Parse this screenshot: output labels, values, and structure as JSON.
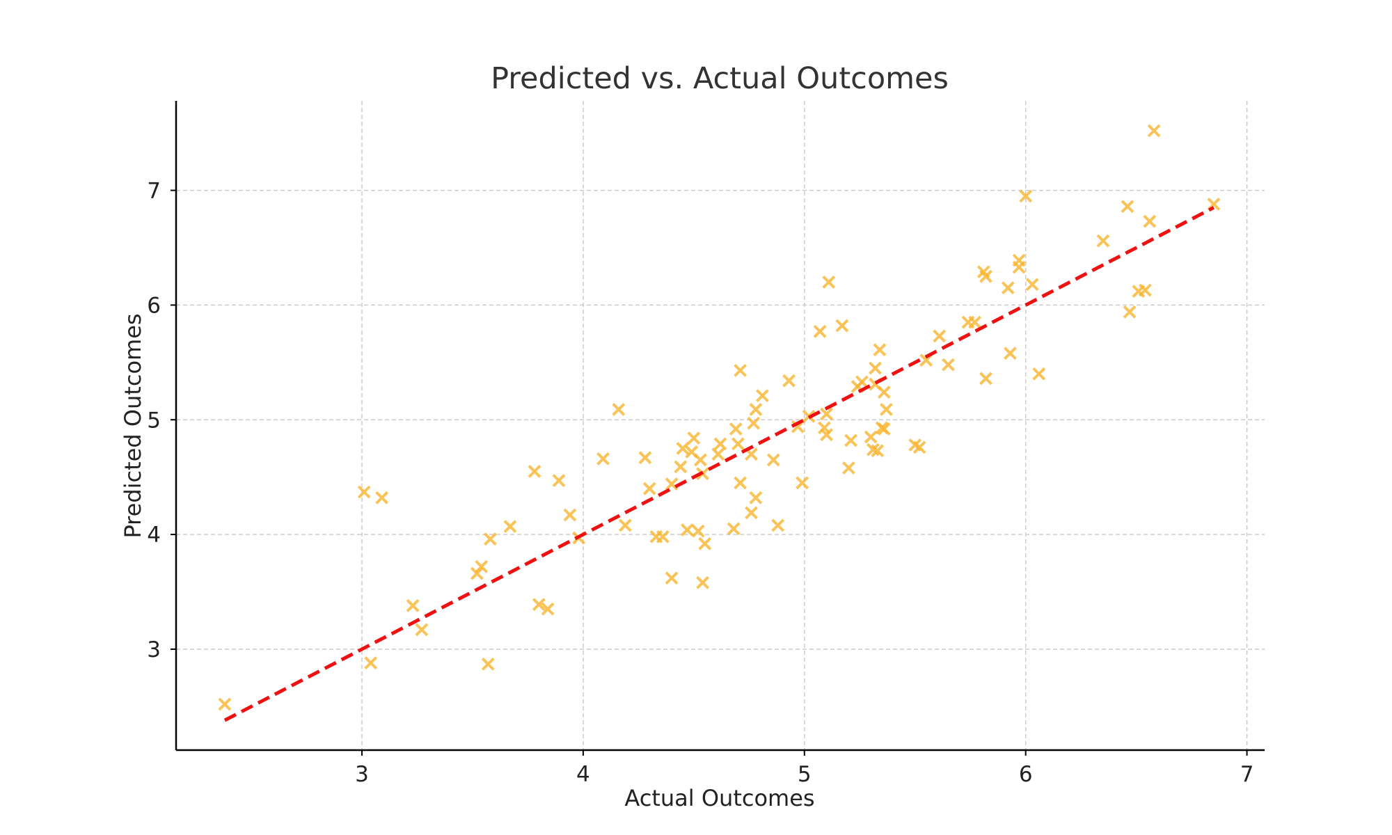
{
  "chart_data": {
    "type": "scatter",
    "title": "Predicted vs. Actual Outcomes",
    "xlabel": "Actual Outcomes",
    "ylabel": "Predicted Outcomes",
    "xlim": [
      2.16,
      7.08
    ],
    "ylim": [
      2.12,
      7.78
    ],
    "xticks": [
      3,
      4,
      5,
      6,
      7
    ],
    "yticks": [
      3,
      4,
      5,
      6,
      7
    ],
    "grid": true,
    "colors": {
      "points": "#f9b52e",
      "fit_line": "#ee1111",
      "text": "#222222",
      "title": "#333333",
      "grid": "#cccccc"
    },
    "marker": "x-icon",
    "fit_line": {
      "style": "dashed",
      "x": [
        2.38,
        6.85
      ],
      "y": [
        2.38,
        6.85
      ]
    },
    "points": [
      [
        2.38,
        2.52
      ],
      [
        3.01,
        4.37
      ],
      [
        3.04,
        2.88
      ],
      [
        3.09,
        4.32
      ],
      [
        3.23,
        3.38
      ],
      [
        3.27,
        3.17
      ],
      [
        3.52,
        3.66
      ],
      [
        3.54,
        3.72
      ],
      [
        3.57,
        2.87
      ],
      [
        3.58,
        3.96
      ],
      [
        3.67,
        4.07
      ],
      [
        3.78,
        4.55
      ],
      [
        3.8,
        3.39
      ],
      [
        3.84,
        3.35
      ],
      [
        3.89,
        4.47
      ],
      [
        3.94,
        4.17
      ],
      [
        3.98,
        3.97
      ],
      [
        4.09,
        4.66
      ],
      [
        4.16,
        5.09
      ],
      [
        4.19,
        4.08
      ],
      [
        4.28,
        4.67
      ],
      [
        4.3,
        4.4
      ],
      [
        4.33,
        3.98
      ],
      [
        4.36,
        3.98
      ],
      [
        4.4,
        3.62
      ],
      [
        4.4,
        4.44
      ],
      [
        4.44,
        4.59
      ],
      [
        4.45,
        4.75
      ],
      [
        4.47,
        4.04
      ],
      [
        4.49,
        4.72
      ],
      [
        4.5,
        4.84
      ],
      [
        4.52,
        4.03
      ],
      [
        4.53,
        4.65
      ],
      [
        4.54,
        4.53
      ],
      [
        4.54,
        3.58
      ],
      [
        4.55,
        3.92
      ],
      [
        4.61,
        4.7
      ],
      [
        4.62,
        4.79
      ],
      [
        4.68,
        4.05
      ],
      [
        4.69,
        4.92
      ],
      [
        4.7,
        4.79
      ],
      [
        4.71,
        5.43
      ],
      [
        4.71,
        4.45
      ],
      [
        4.76,
        4.19
      ],
      [
        4.76,
        4.7
      ],
      [
        4.77,
        4.97
      ],
      [
        4.78,
        5.09
      ],
      [
        4.78,
        4.32
      ],
      [
        4.81,
        5.21
      ],
      [
        4.86,
        4.65
      ],
      [
        4.88,
        4.08
      ],
      [
        4.93,
        5.34
      ],
      [
        4.97,
        4.94
      ],
      [
        4.99,
        4.45
      ],
      [
        5.02,
        5.03
      ],
      [
        5.07,
        5.77
      ],
      [
        5.09,
        4.93
      ],
      [
        5.1,
        4.87
      ],
      [
        5.1,
        5.05
      ],
      [
        5.11,
        6.2
      ],
      [
        5.17,
        5.82
      ],
      [
        5.2,
        4.58
      ],
      [
        5.21,
        4.82
      ],
      [
        5.24,
        5.29
      ],
      [
        5.26,
        5.33
      ],
      [
        5.3,
        4.85
      ],
      [
        5.31,
        4.74
      ],
      [
        5.32,
        5.45
      ],
      [
        5.32,
        5.31
      ],
      [
        5.33,
        4.73
      ],
      [
        5.34,
        5.61
      ],
      [
        5.35,
        4.93
      ],
      [
        5.36,
        4.92
      ],
      [
        5.36,
        5.24
      ],
      [
        5.37,
        5.09
      ],
      [
        5.5,
        4.78
      ],
      [
        5.52,
        4.76
      ],
      [
        5.55,
        5.52
      ],
      [
        5.61,
        5.73
      ],
      [
        5.65,
        5.48
      ],
      [
        5.74,
        5.85
      ],
      [
        5.77,
        5.85
      ],
      [
        5.81,
        6.29
      ],
      [
        5.82,
        6.25
      ],
      [
        5.82,
        5.36
      ],
      [
        5.92,
        6.15
      ],
      [
        5.93,
        5.58
      ],
      [
        5.97,
        6.39
      ],
      [
        5.97,
        6.33
      ],
      [
        6.0,
        6.95
      ],
      [
        6.03,
        6.18
      ],
      [
        6.06,
        5.4
      ],
      [
        6.35,
        6.56
      ],
      [
        6.46,
        6.86
      ],
      [
        6.47,
        5.94
      ],
      [
        6.51,
        6.12
      ],
      [
        6.54,
        6.13
      ],
      [
        6.56,
        6.73
      ],
      [
        6.58,
        7.52
      ],
      [
        6.85,
        6.88
      ]
    ]
  }
}
